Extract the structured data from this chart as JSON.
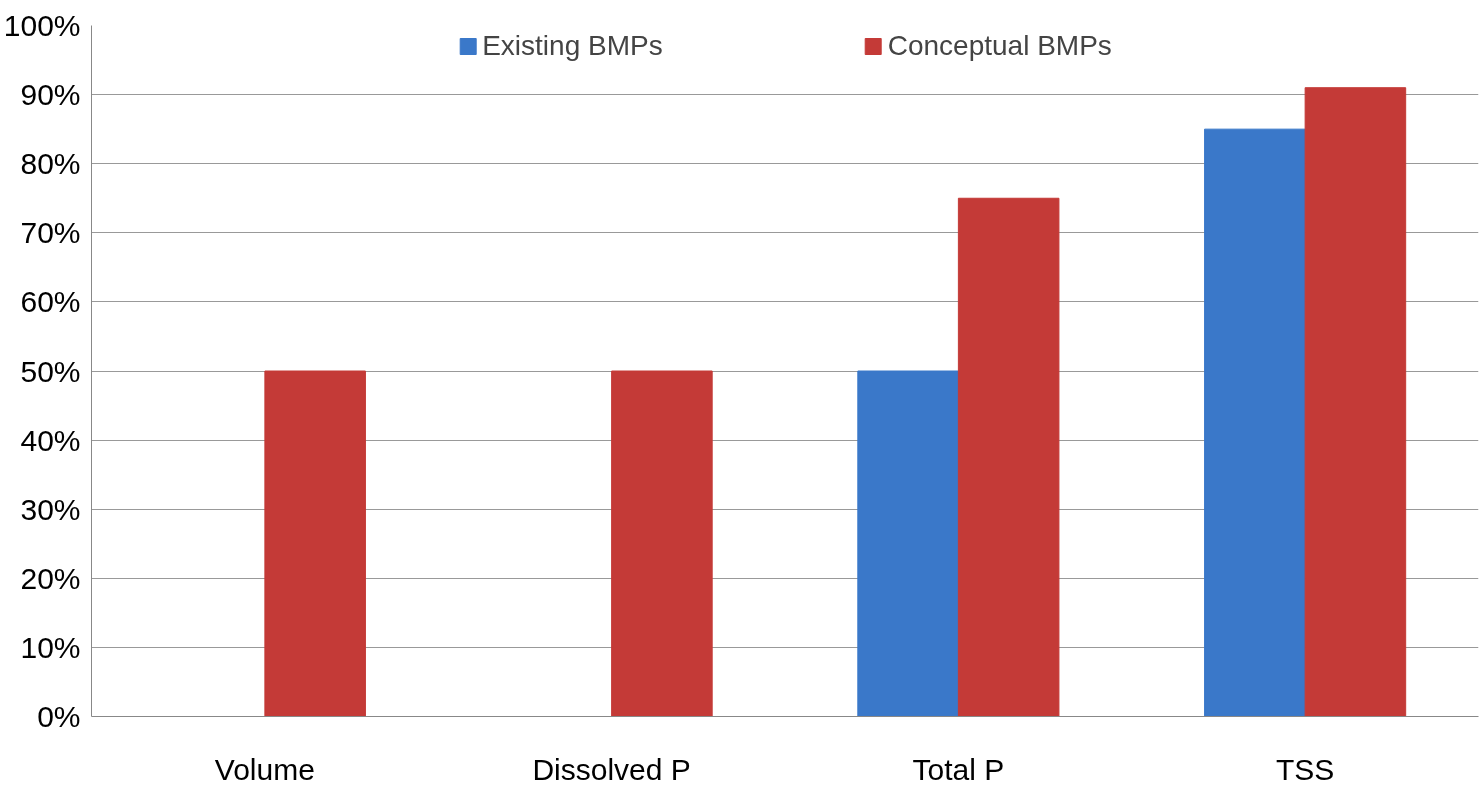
{
  "chart_data": {
    "type": "bar",
    "categories": [
      "Volume",
      "Dissolved P",
      "Total P",
      "TSS"
    ],
    "series": [
      {
        "name": "Existing BMPs",
        "color": "#3a78c9",
        "values": [
          0,
          0,
          50,
          85
        ]
      },
      {
        "name": "Conceptual BMPs",
        "color": "#c43a37",
        "values": [
          50,
          50,
          75,
          91
        ]
      }
    ],
    "ylim": [
      0,
      100
    ],
    "yticks": [
      {
        "value": 0,
        "label": "0%"
      },
      {
        "value": 10,
        "label": "10%"
      },
      {
        "value": 20,
        "label": "20%"
      },
      {
        "value": 30,
        "label": "30%"
      },
      {
        "value": 40,
        "label": "40%"
      },
      {
        "value": 50,
        "label": "50%"
      },
      {
        "value": 60,
        "label": "60%"
      },
      {
        "value": 70,
        "label": "70%"
      },
      {
        "value": 80,
        "label": "80%"
      },
      {
        "value": 90,
        "label": "90%"
      },
      {
        "value": 100,
        "label": "100%"
      }
    ],
    "grid": "y",
    "legend": "top"
  }
}
